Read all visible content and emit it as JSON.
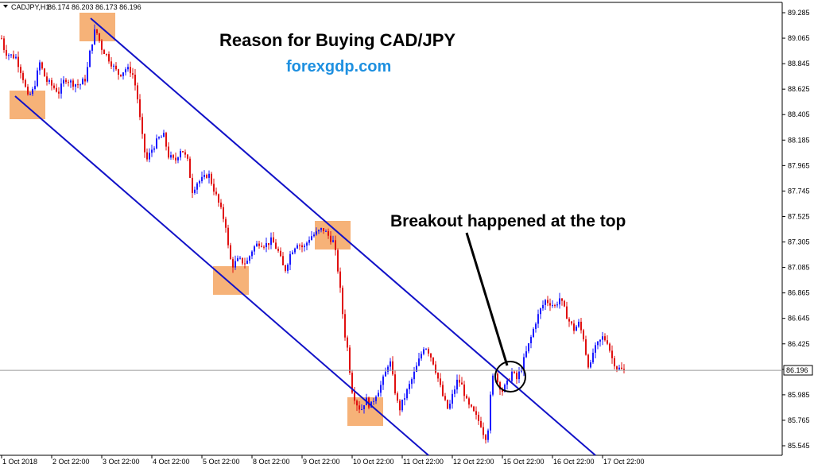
{
  "header": {
    "symbol": "CADJPY,H1",
    "ohlc": "86.174 86.203 86.173 86.196"
  },
  "title": "Reason for Buying CAD/JPY",
  "subtitle": "forexgdp.com",
  "annotation": "Breakout happened at the top",
  "current_price_label": "86.196",
  "colors": {
    "bull": "#1a1aff",
    "bear": "#e01010",
    "channel": "#1212c8",
    "highlight": "#f4a460",
    "subtitle": "#1e90e0",
    "price_line": "#9a9a9a"
  },
  "chart_data": {
    "type": "candlestick",
    "symbol": "CADJPY",
    "timeframe": "H1",
    "ylim": [
      85.51,
      89.33
    ],
    "y_ticks": [
      "89.285",
      "89.065",
      "88.845",
      "88.625",
      "88.405",
      "88.185",
      "87.965",
      "87.745",
      "87.525",
      "87.305",
      "87.085",
      "86.865",
      "86.645",
      "86.425",
      "86.205",
      "85.985",
      "85.765",
      "85.545"
    ],
    "x_ticks": [
      "1 Oct 2018",
      "2 Oct 22:00",
      "3 Oct 22:00",
      "4 Oct 22:00",
      "5 Oct 22:00",
      "8 Oct 22:00",
      "9 Oct 22:00",
      "10 Oct 22:00",
      "11 Oct 22:00",
      "12 Oct 22:00",
      "15 Oct 22:00",
      "16 Oct 22:00",
      "17 Oct 22:00"
    ],
    "last_price": 86.196,
    "price_path": [
      [
        0,
        89.12
      ],
      [
        6,
        88.95
      ],
      [
        12,
        88.92
      ],
      [
        20,
        88.9
      ],
      [
        28,
        88.75
      ],
      [
        35,
        88.55
      ],
      [
        42,
        88.62
      ],
      [
        50,
        88.85
      ],
      [
        58,
        88.7
      ],
      [
        66,
        88.65
      ],
      [
        74,
        88.6
      ],
      [
        82,
        88.72
      ],
      [
        90,
        88.68
      ],
      [
        100,
        88.66
      ],
      [
        108,
        88.72
      ],
      [
        114,
        88.98
      ],
      [
        120,
        89.15
      ],
      [
        128,
        88.98
      ],
      [
        136,
        88.9
      ],
      [
        144,
        88.8
      ],
      [
        150,
        88.75
      ],
      [
        158,
        88.8
      ],
      [
        166,
        88.78
      ],
      [
        172,
        88.6
      ],
      [
        178,
        88.25
      ],
      [
        184,
        88.0
      ],
      [
        192,
        88.12
      ],
      [
        200,
        88.2
      ],
      [
        206,
        88.22
      ],
      [
        212,
        88.05
      ],
      [
        220,
        88.0
      ],
      [
        228,
        88.12
      ],
      [
        236,
        88.0
      ],
      [
        242,
        87.75
      ],
      [
        248,
        87.82
      ],
      [
        256,
        87.85
      ],
      [
        262,
        87.9
      ],
      [
        268,
        87.78
      ],
      [
        276,
        87.62
      ],
      [
        284,
        87.45
      ],
      [
        288,
        87.2
      ],
      [
        292,
        87.1
      ],
      [
        300,
        87.15
      ],
      [
        310,
        87.12
      ],
      [
        318,
        87.25
      ],
      [
        326,
        87.3
      ],
      [
        334,
        87.28
      ],
      [
        342,
        87.32
      ],
      [
        350,
        87.22
      ],
      [
        358,
        87.05
      ],
      [
        366,
        87.22
      ],
      [
        374,
        87.3
      ],
      [
        382,
        87.25
      ],
      [
        390,
        87.35
      ],
      [
        398,
        87.38
      ],
      [
        406,
        87.42
      ],
      [
        414,
        87.35
      ],
      [
        420,
        87.3
      ],
      [
        426,
        87.02
      ],
      [
        430,
        86.75
      ],
      [
        434,
        86.5
      ],
      [
        438,
        86.35
      ],
      [
        442,
        86.05
      ],
      [
        448,
        85.92
      ],
      [
        454,
        85.85
      ],
      [
        460,
        85.95
      ],
      [
        466,
        85.88
      ],
      [
        472,
        85.98
      ],
      [
        478,
        86.05
      ],
      [
        484,
        86.15
      ],
      [
        490,
        86.3
      ],
      [
        496,
        86.05
      ],
      [
        502,
        85.85
      ],
      [
        508,
        85.95
      ],
      [
        514,
        86.05
      ],
      [
        520,
        86.15
      ],
      [
        528,
        86.3
      ],
      [
        534,
        86.42
      ],
      [
        540,
        86.35
      ],
      [
        546,
        86.25
      ],
      [
        552,
        86.1
      ],
      [
        558,
        85.95
      ],
      [
        564,
        85.85
      ],
      [
        570,
        86.0
      ],
      [
        576,
        86.12
      ],
      [
        582,
        86.05
      ],
      [
        588,
        85.9
      ],
      [
        594,
        85.85
      ],
      [
        600,
        85.78
      ],
      [
        606,
        85.72
      ],
      [
        610,
        85.6
      ],
      [
        614,
        85.7
      ],
      [
        618,
        86.05
      ],
      [
        622,
        86.22
      ],
      [
        626,
        86.1
      ],
      [
        632,
        86.02
      ],
      [
        638,
        86.08
      ],
      [
        644,
        86.18
      ],
      [
        650,
        86.12
      ],
      [
        656,
        86.22
      ],
      [
        662,
        86.35
      ],
      [
        668,
        86.48
      ],
      [
        674,
        86.62
      ],
      [
        680,
        86.72
      ],
      [
        686,
        86.8
      ],
      [
        692,
        86.78
      ],
      [
        698,
        86.75
      ],
      [
        704,
        86.82
      ],
      [
        710,
        86.72
      ],
      [
        716,
        86.62
      ],
      [
        722,
        86.55
      ],
      [
        728,
        86.6
      ],
      [
        734,
        86.48
      ],
      [
        738,
        86.3
      ],
      [
        742,
        86.2
      ],
      [
        746,
        86.35
      ],
      [
        752,
        86.42
      ],
      [
        758,
        86.48
      ],
      [
        764,
        86.45
      ],
      [
        770,
        86.3
      ],
      [
        776,
        86.22
      ],
      [
        782,
        86.2
      ],
      [
        786,
        86.19
      ]
    ],
    "channel_upper": [
      [
        2.87,
        89.25
      ],
      [
        17.68,
        85.33
      ]
    ],
    "channel_lower": [
      [
        0.15,
        88.55
      ],
      [
        10.66,
        85.33
      ]
    ],
    "highlight_zones": [
      {
        "x0": "2 Oct 22:00",
        "role": "swing high"
      },
      {
        "x0": "1 Oct 2018",
        "role": "swing low"
      },
      {
        "x0": "5 Oct 22:00",
        "role": "swing low"
      },
      {
        "x0": "9 Oct 22:00",
        "role": "swing high"
      },
      {
        "x0": "10 Oct 22:00",
        "role": "swing low"
      }
    ],
    "breakout_marker": "15 Oct 22:00"
  }
}
